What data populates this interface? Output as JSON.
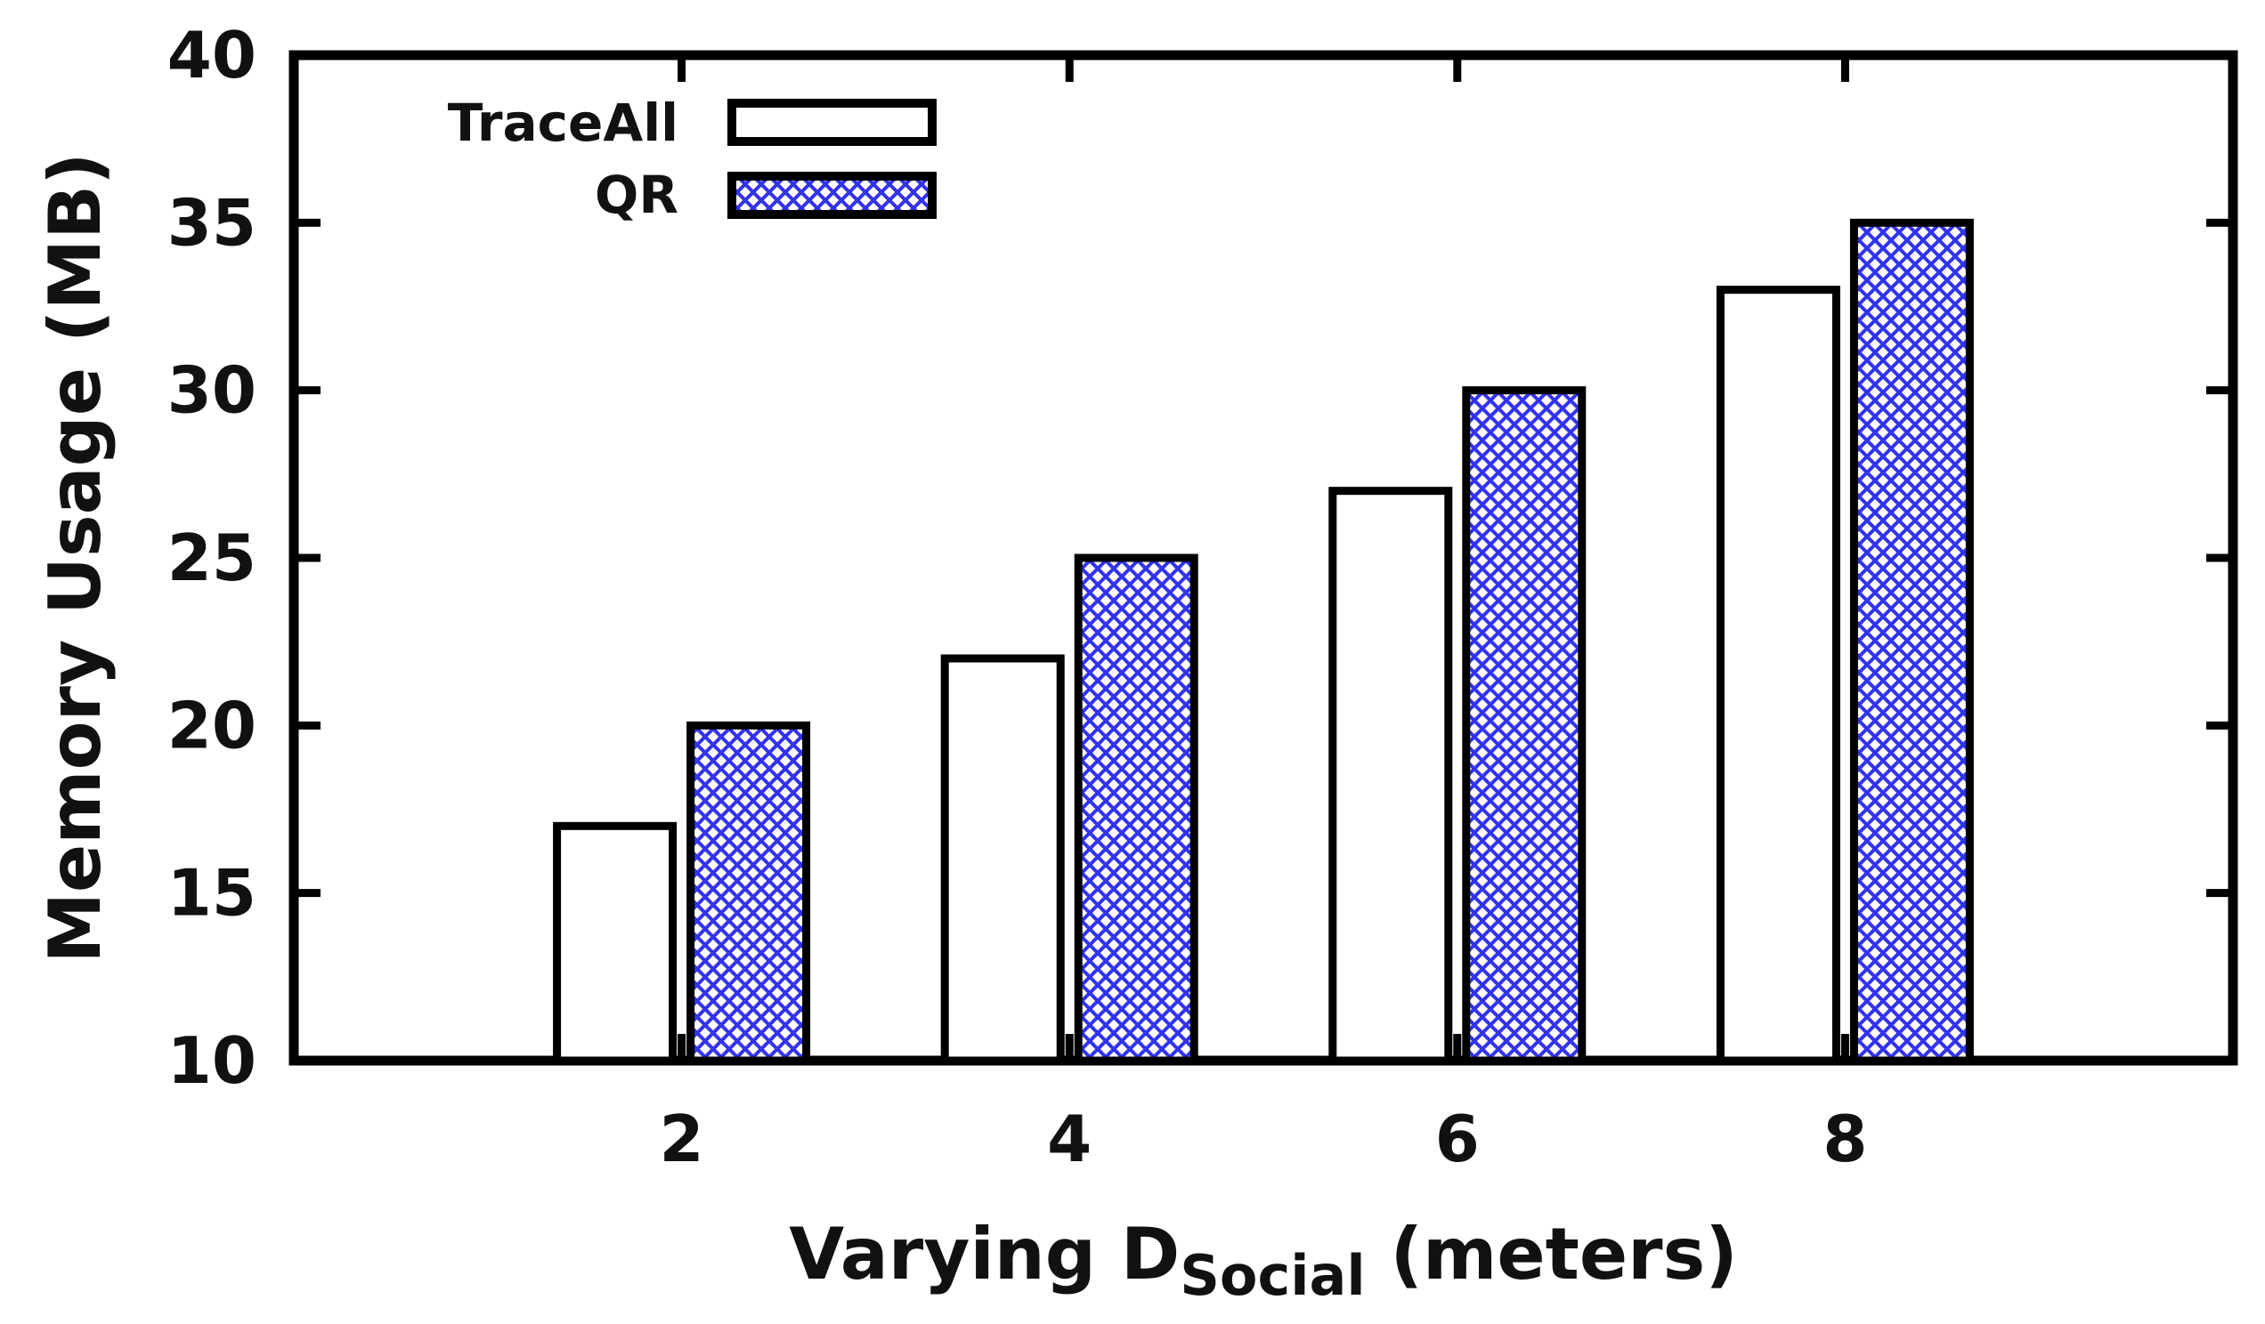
{
  "chart_data": {
    "type": "bar",
    "categories": [
      "2",
      "4",
      "6",
      "8"
    ],
    "series": [
      {
        "name": "TraceAll",
        "values": [
          17,
          22,
          27,
          33
        ],
        "fill": "#ffffff",
        "pattern": "none"
      },
      {
        "name": "QR",
        "values": [
          20,
          25,
          30,
          35
        ],
        "fill": "#ffffff",
        "pattern": "blue-crosshatch"
      }
    ],
    "xlabel": {
      "main": "Varying D",
      "subscript": "Social",
      "suffix": " (meters)"
    },
    "ylabel": "Memory Usage (MB)",
    "ylim": [
      10,
      40
    ],
    "yticks": [
      10,
      15,
      20,
      25,
      30,
      35,
      40
    ],
    "grid": false,
    "legend_position": "top-left",
    "colors": {
      "pattern": "#3333ee",
      "stroke": "#000000"
    }
  }
}
